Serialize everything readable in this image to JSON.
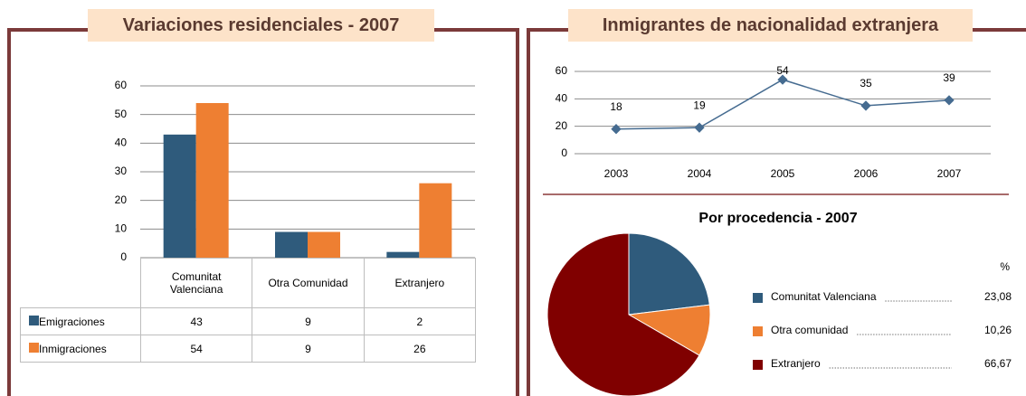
{
  "chart_data": [
    {
      "type": "bar",
      "title": "Variaciones residenciales - 2007",
      "categories": [
        "Comunitat Valenciana",
        "Otra Comunidad",
        "Extranjero"
      ],
      "series": [
        {
          "name": "Emigraciones",
          "color": "#2f5b7c",
          "values": [
            43,
            9,
            2
          ]
        },
        {
          "name": "Inmigraciones",
          "color": "#ee7f32",
          "values": [
            54,
            9,
            26
          ]
        }
      ],
      "ylim": [
        0,
        60
      ],
      "yticks": [
        0,
        10,
        20,
        30,
        40,
        50,
        60
      ],
      "grid": true,
      "data_table": true
    },
    {
      "type": "line",
      "title": "Inmigrantes de nacionalidad extranjera",
      "categories": [
        "2003",
        "2004",
        "2005",
        "2006",
        "2007"
      ],
      "values": [
        18,
        19,
        54,
        35,
        39
      ],
      "color": "#456b90",
      "ylim": [
        0,
        60
      ],
      "yticks": [
        0,
        20,
        40,
        60
      ],
      "grid": true
    },
    {
      "type": "pie",
      "title": "Por procedencia - 2007",
      "unit_label": "%",
      "categories": [
        "Comunitat Valenciana",
        "Otra comunidad",
        "Extranjero"
      ],
      "values": [
        23.08,
        10.26,
        66.67
      ],
      "value_labels": [
        "23,08",
        "10,26",
        "66,67"
      ],
      "colors": [
        "#2f5b7c",
        "#ee7f32",
        "#800000"
      ]
    }
  ]
}
